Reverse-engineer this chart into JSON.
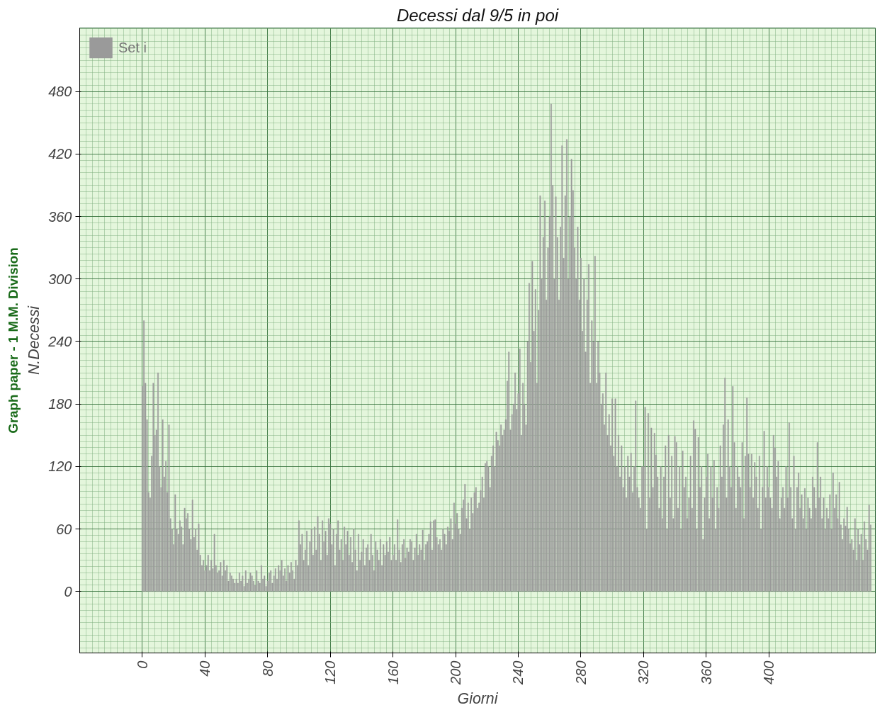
{
  "chart_data": {
    "type": "bar",
    "title": "Decessi dal 9/5 in poi",
    "xlabel": "Giorni",
    "ylabel": "N.Decessi",
    "annotations": [
      "Graph paper - 1 M.M. Division"
    ],
    "x": [
      0,
      1,
      2,
      3,
      4,
      5,
      6,
      7,
      8,
      9,
      10,
      11,
      12,
      13,
      14,
      15,
      16,
      17,
      18,
      19,
      20,
      21,
      22,
      23,
      24,
      25,
      26,
      27,
      28,
      29,
      30,
      31,
      32,
      33,
      34,
      35,
      36,
      37,
      38,
      39,
      40,
      41,
      42,
      43,
      44,
      45,
      46,
      47,
      48,
      49,
      50,
      51,
      52,
      53,
      54,
      55,
      56,
      57,
      58,
      59,
      60,
      61,
      62,
      63,
      64,
      65,
      66,
      67,
      68,
      69,
      70,
      71,
      72,
      73,
      74,
      75,
      76,
      77,
      78,
      79,
      80,
      81,
      82,
      83,
      84,
      85,
      86,
      87,
      88,
      89,
      90,
      91,
      92,
      93,
      94,
      95,
      96,
      97,
      98,
      99,
      100,
      101,
      102,
      103,
      104,
      105,
      106,
      107,
      108,
      109,
      110,
      111,
      112,
      113,
      114,
      115,
      116,
      117,
      118,
      119,
      120,
      121,
      122,
      123,
      124,
      125,
      126,
      127,
      128,
      129,
      130,
      131,
      132,
      133,
      134,
      135,
      136,
      137,
      138,
      139,
      140,
      141,
      142,
      143,
      144,
      145,
      146,
      147,
      148,
      149,
      150,
      151,
      152,
      153,
      154,
      155,
      156,
      157,
      158,
      159,
      160,
      161,
      162,
      163,
      164,
      165,
      166,
      167,
      168,
      169,
      170,
      171,
      172,
      173,
      174,
      175,
      176,
      177,
      178,
      179,
      180,
      181,
      182,
      183,
      184,
      185,
      186,
      187,
      188,
      189,
      190,
      191,
      192,
      193,
      194,
      195,
      196,
      197,
      198,
      199,
      200,
      201,
      202,
      203,
      204,
      205,
      206,
      207,
      208,
      209,
      210,
      211,
      212,
      213,
      214,
      215,
      216,
      217,
      218,
      219,
      220,
      221,
      222,
      223,
      224,
      225,
      226,
      227,
      228,
      229,
      230,
      231,
      232,
      233,
      234,
      235,
      236,
      237,
      238,
      239,
      240,
      241,
      242,
      243,
      244,
      245,
      246,
      247,
      248,
      249,
      250,
      251,
      252,
      253,
      254,
      255,
      256,
      257,
      258,
      259,
      260,
      261,
      262,
      263,
      264,
      265,
      266,
      267,
      268,
      269,
      270,
      271,
      272,
      273,
      274,
      275,
      276,
      277,
      278,
      279,
      280,
      281,
      282,
      283,
      284,
      285,
      286,
      287,
      288,
      289,
      290,
      291,
      292,
      293,
      294,
      295,
      296,
      297,
      298,
      299,
      300,
      301,
      302,
      303,
      304,
      305,
      306,
      307,
      308,
      309,
      310,
      311,
      312,
      313,
      314,
      315,
      316,
      317,
      318,
      319,
      320,
      321,
      322,
      323,
      324,
      325,
      326,
      327,
      328,
      329,
      330,
      331,
      332,
      333,
      334,
      335,
      336,
      337,
      338,
      339,
      340,
      341,
      342,
      343,
      344,
      345,
      346,
      347,
      348,
      349,
      350,
      351,
      352,
      353,
      354,
      355,
      356,
      357,
      358,
      359,
      360,
      361,
      362,
      363,
      364,
      365,
      366,
      367,
      368,
      369,
      370,
      371,
      372,
      373,
      374,
      375,
      376,
      377,
      378,
      379,
      380,
      381,
      382,
      383,
      384,
      385,
      386,
      387,
      388,
      389,
      390,
      391,
      392,
      393,
      394,
      395,
      396,
      397,
      398,
      399,
      400,
      401,
      402,
      403,
      404,
      405,
      406,
      407,
      408,
      409,
      410,
      411,
      412,
      413,
      414,
      415,
      416,
      417,
      418,
      419,
      420,
      421,
      422,
      423,
      424,
      425,
      426,
      427,
      428,
      429,
      430,
      431,
      432,
      433,
      434,
      435,
      436,
      437,
      438,
      439,
      440,
      441,
      442,
      443,
      444,
      445,
      446,
      447,
      448,
      449,
      450,
      451,
      452,
      453,
      454,
      455,
      456,
      457,
      458,
      459,
      460,
      461,
      462,
      463,
      464,
      465
    ],
    "series": [
      {
        "name": "Set i",
        "color": "#9a9a9a",
        "values": [
          197,
          260,
          200,
          165,
          95,
          90,
          130,
          200,
          150,
          155,
          210,
          120,
          100,
          165,
          110,
          125,
          95,
          160,
          70,
          60,
          45,
          93,
          60,
          55,
          68,
          62,
          45,
          80,
          70,
          75,
          60,
          50,
          88,
          52,
          60,
          40,
          65,
          35,
          25,
          30,
          20,
          25,
          35,
          20,
          30,
          22,
          55,
          25,
          18,
          20,
          28,
          15,
          30,
          20,
          25,
          10,
          18,
          15,
          12,
          8,
          12,
          8,
          18,
          10,
          15,
          5,
          20,
          8,
          12,
          18,
          15,
          10,
          6,
          20,
          10,
          8,
          25,
          12,
          15,
          5,
          10,
          18,
          20,
          8,
          15,
          22,
          12,
          25,
          20,
          30,
          15,
          22,
          10,
          25,
          18,
          28,
          20,
          12,
          30,
          25,
          68,
          45,
          55,
          30,
          40,
          58,
          25,
          48,
          60,
          35,
          62,
          40,
          72,
          55,
          30,
          68,
          48,
          58,
          35,
          70,
          65,
          45,
          60,
          25,
          55,
          68,
          40,
          50,
          30,
          62,
          45,
          58,
          35,
          52,
          28,
          60,
          40,
          20,
          55,
          30,
          38,
          50,
          25,
          42,
          45,
          30,
          55,
          35,
          20,
          48,
          40,
          30,
          50,
          25,
          45,
          35,
          48,
          38,
          52,
          30,
          35,
          45,
          30,
          69,
          40,
          28,
          45,
          50,
          32,
          42,
          38,
          50,
          48,
          30,
          42,
          55,
          35,
          45,
          40,
          59,
          30,
          45,
          48,
          55,
          67,
          40,
          68,
          69,
          52,
          45,
          50,
          40,
          60,
          55,
          45,
          62,
          58,
          70,
          50,
          85,
          65,
          75,
          60,
          55,
          80,
          88,
          103,
          70,
          85,
          60,
          90,
          75,
          95,
          100,
          80,
          85,
          97,
          110,
          90,
          123,
          125,
          120,
          100,
          130,
          140,
          120,
          153,
          145,
          140,
          160,
          150,
          155,
          165,
          202,
          230,
          155,
          170,
          180,
          210,
          175,
          190,
          233,
          150,
          200,
          180,
          160,
          240,
          296,
          220,
          317,
          250,
          290,
          200,
          270,
          380,
          300,
          340,
          375,
          280,
          330,
          360,
          468,
          390,
          300,
          379,
          340,
          280,
          350,
          428,
          320,
          380,
          434,
          300,
          360,
          415,
          385,
          330,
          300,
          350,
          280,
          320,
          250,
          300,
          230,
          280,
          314,
          200,
          260,
          240,
          322,
          200,
          240,
          210,
          180,
          190,
          160,
          210,
          150,
          170,
          140,
          185,
          130,
          185,
          120,
          150,
          110,
          140,
          100,
          120,
          90,
          130,
          110,
          133,
          95,
          120,
          183,
          100,
          90,
          80,
          120,
          120,
          177,
          60,
          171,
          90,
          157,
          100,
          152,
          131,
          110,
          80,
          120,
          70,
          110,
          140,
          60,
          150,
          90,
          130,
          70,
          149,
          143,
          80,
          120,
          60,
          135,
          100,
          110,
          70,
          90,
          130,
          80,
          164,
          156,
          60,
          148,
          100,
          120,
          50,
          90,
          110,
          132,
          70,
          120,
          90,
          126,
          60,
          100,
          80,
          140,
          110,
          160,
          205,
          90,
          165,
          120,
          100,
          197,
          143,
          80,
          120,
          110,
          100,
          143,
          70,
          130,
          186,
          132,
          100,
          132,
          90,
          124,
          110,
          80,
          130,
          60,
          100,
          154,
          90,
          120,
          100,
          90,
          80,
          150,
          138,
          110,
          125,
          70,
          90,
          100,
          80,
          120,
          90,
          162,
          100,
          70,
          130,
          60,
          100,
          114,
          80,
          93,
          70,
          99,
          60,
          90,
          80,
          70,
          110,
          100,
          80,
          143,
          90,
          110,
          70,
          90,
          60,
          80,
          70,
          93,
          60,
          114,
          80,
          93,
          70,
          105,
          64,
          50,
          70,
          63,
          81,
          60,
          46,
          50,
          40,
          70,
          30,
          60,
          45,
          55,
          30,
          67,
          50,
          40,
          83,
          64
        ]
      }
    ],
    "xlim": [
      -40,
      468
    ],
    "ylim": [
      -59,
      541
    ],
    "xticks": [
      0,
      40,
      80,
      120,
      160,
      200,
      240,
      280,
      320,
      360,
      400
    ],
    "yticks": [
      0,
      60,
      120,
      180,
      240,
      300,
      360,
      420,
      480
    ],
    "grid": true,
    "legend": "top left"
  }
}
